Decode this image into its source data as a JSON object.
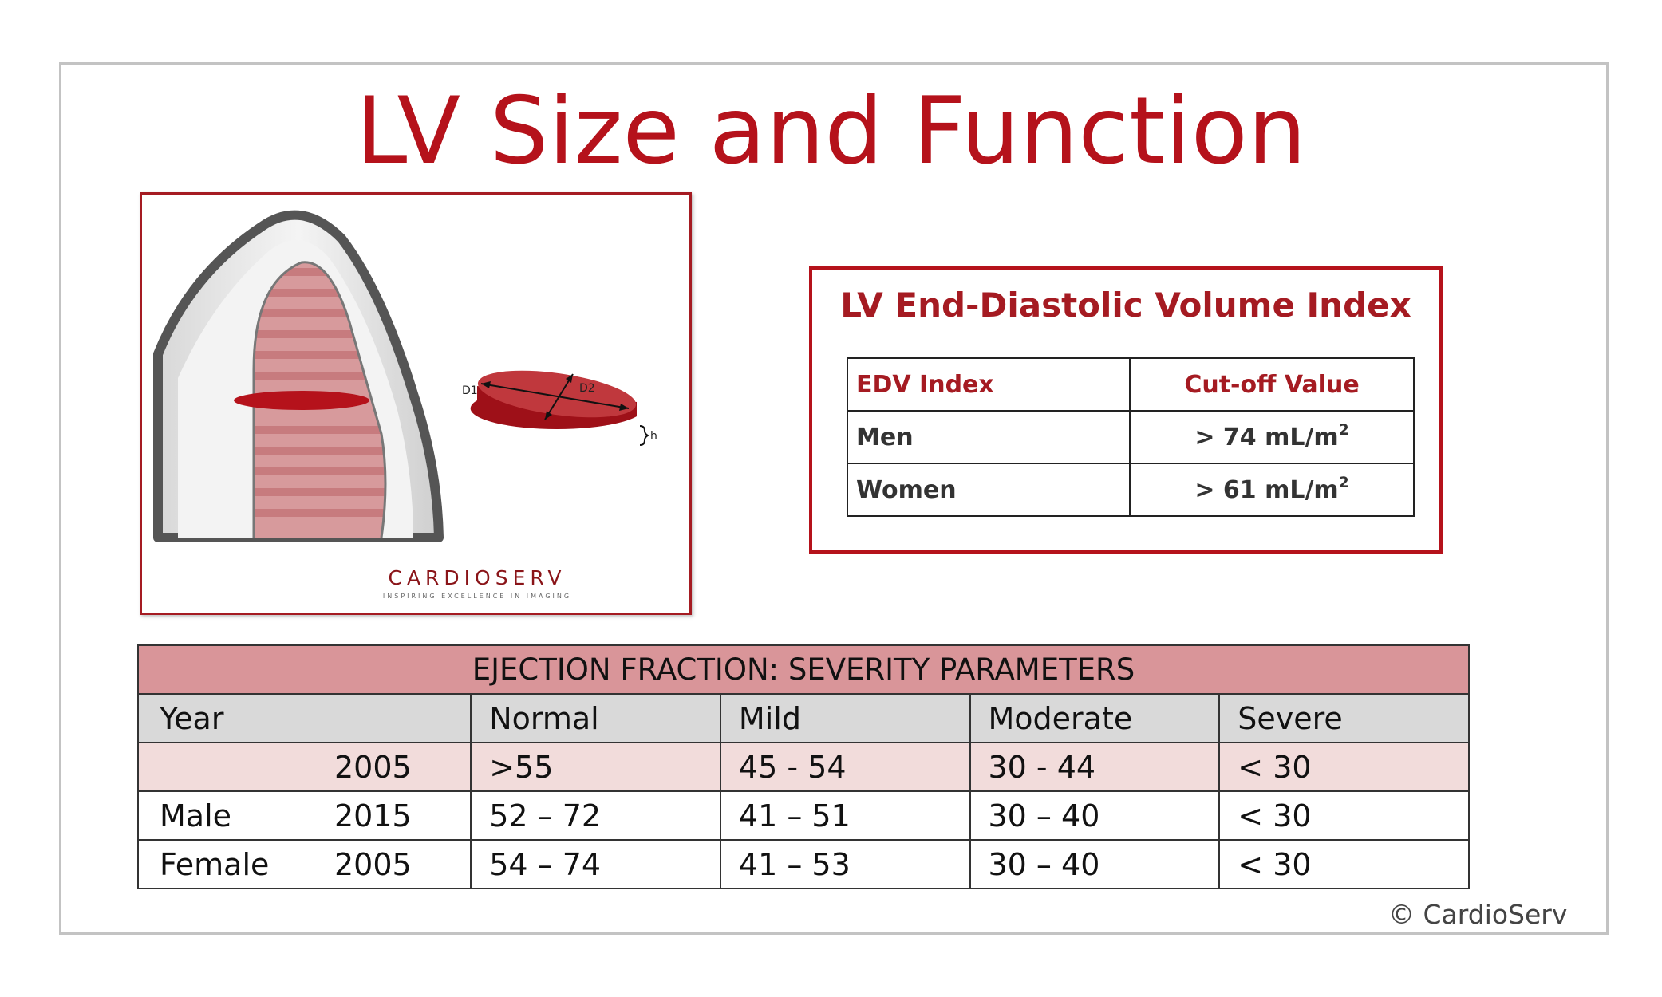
{
  "title": "LV Size and Function",
  "illustration": {
    "label_d1": "D1",
    "label_d2": "D2",
    "label_h": "h",
    "brand_name": "CARDIOSERV",
    "brand_tagline": "INSPIRING EXCELLENCE IN IMAGING"
  },
  "edv": {
    "title": "LV End-Diastolic Volume Index",
    "headers": [
      "EDV Index",
      "Cut-off Value"
    ],
    "rows": [
      {
        "label": "Men",
        "value": "> 74 mL/m",
        "sup": "2"
      },
      {
        "label": "Women",
        "value": "> 61 mL/m",
        "sup": "2"
      }
    ]
  },
  "ef_table": {
    "banner": "EJECTION FRACTION:  SEVERITY PARAMETERS",
    "headers": [
      "Year",
      "Normal",
      "Mild",
      "Moderate",
      "Severe"
    ],
    "rows": [
      {
        "group": "",
        "year": "2005",
        "normal": ">55",
        "mild": "45 - 54",
        "moderate": "30 - 44",
        "severe": "< 30"
      },
      {
        "group": "Male",
        "year": "2015",
        "normal": "52 – 72",
        "mild": "41 – 51",
        "moderate": "30 – 40",
        "severe": "< 30"
      },
      {
        "group": "Female",
        "year": "2005",
        "normal": "54 – 74",
        "mild": "41 – 53",
        "moderate": "30 – 40",
        "severe": "< 30"
      }
    ]
  },
  "copyright": "© CardioServ",
  "colors": {
    "accent": "#b5121b",
    "banner": "#d99599",
    "header_gray": "#d9d9d9",
    "row_pink": "#f2dcdb"
  }
}
